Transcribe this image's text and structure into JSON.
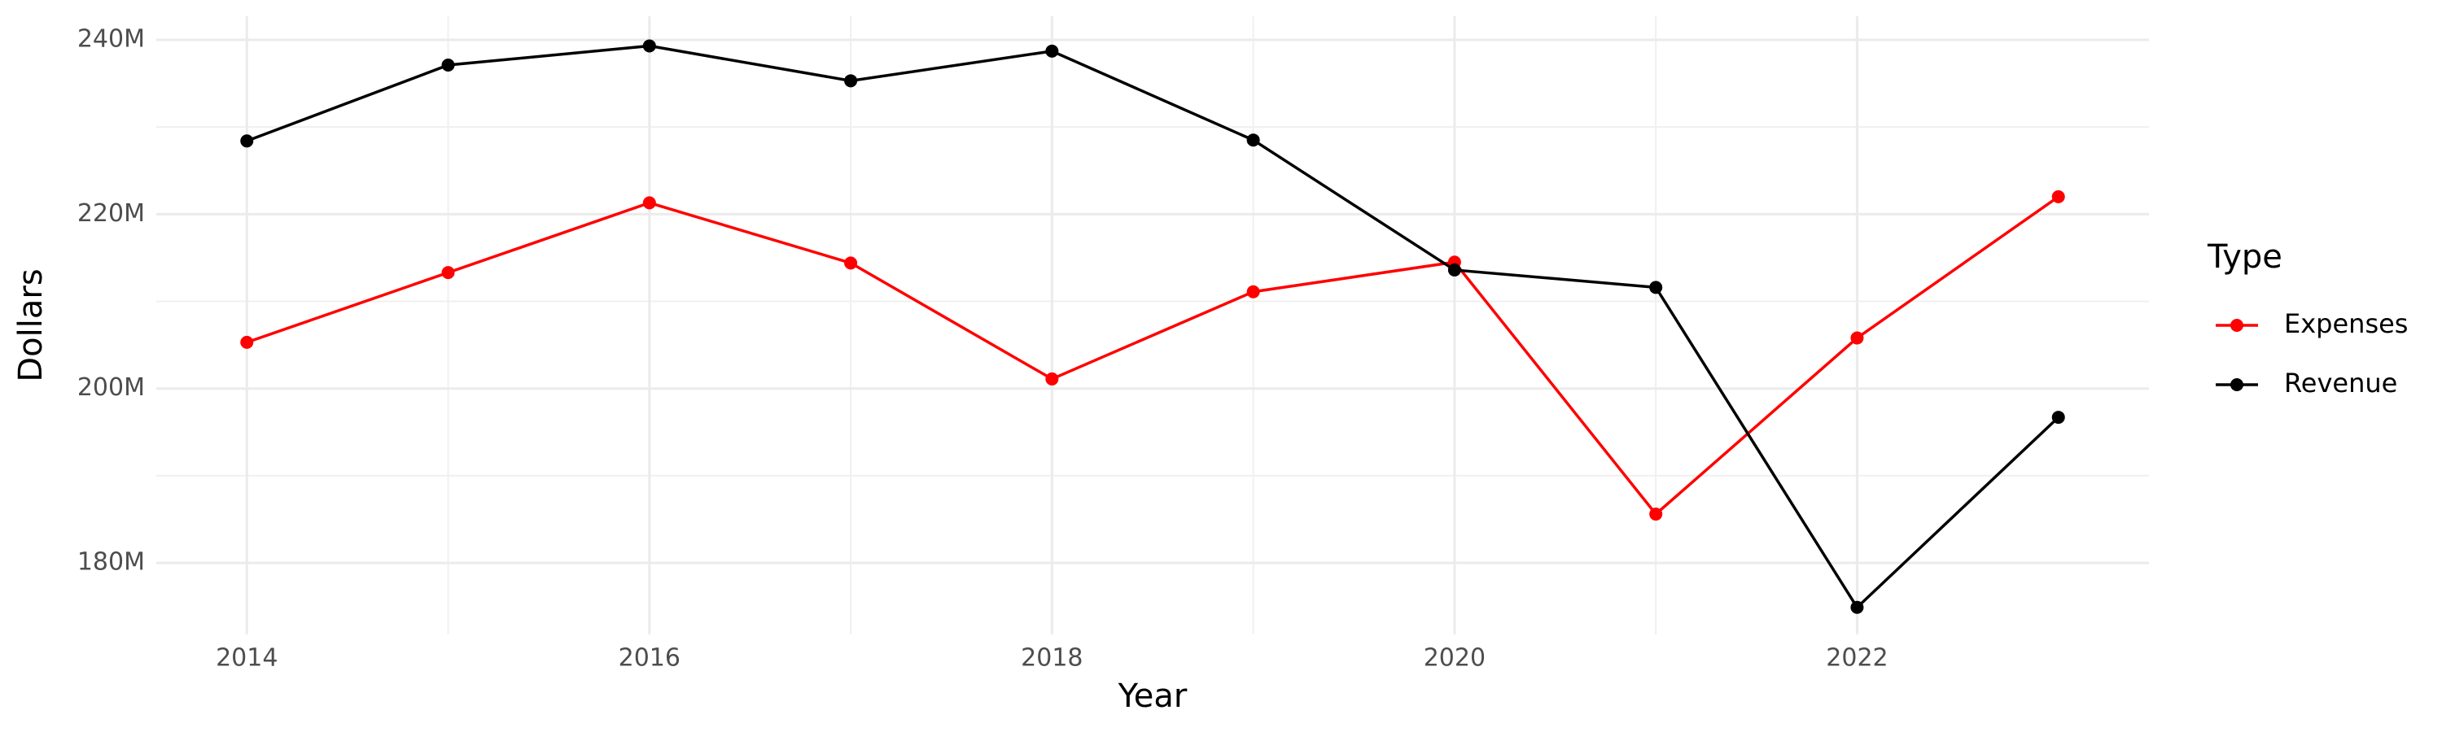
{
  "chart_data": {
    "type": "line",
    "x_label": "Year",
    "y_label": "Dollars",
    "legend_title": "Type",
    "legend": "right",
    "grid": true,
    "x": [
      2014,
      2015,
      2016,
      2017,
      2018,
      2019,
      2020,
      2021,
      2022,
      2023
    ],
    "series": [
      {
        "name": "Expenses",
        "color": "#ff0000",
        "values": [
          205300000,
          213300000,
          221300000,
          214400000,
          201100000,
          211100000,
          214500000,
          185600000,
          205800000,
          222000000
        ]
      },
      {
        "name": "Revenue",
        "color": "#000000",
        "values": [
          228400000,
          237100000,
          239300000,
          235300000,
          238700000,
          228500000,
          213600000,
          211600000,
          174900000,
          196700000
        ]
      }
    ],
    "xlim": [
      2013.55,
      2023.45
    ],
    "xticks": [
      2014,
      2016,
      2018,
      2020,
      2022
    ],
    "ylim": [
      171800000,
      242700000
    ],
    "yticks": [
      {
        "value": 180000000,
        "label": "180M"
      },
      {
        "value": 200000000,
        "label": "200M"
      },
      {
        "value": 220000000,
        "label": "220M"
      },
      {
        "value": 240000000,
        "label": "240M"
      }
    ]
  }
}
